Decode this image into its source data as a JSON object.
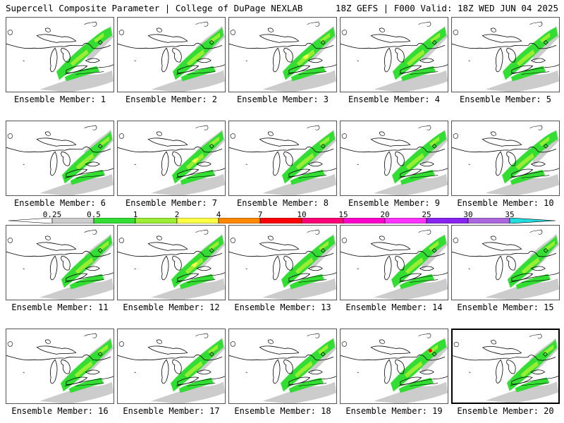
{
  "header": {
    "left": "Supercell Composite Parameter | College of DuPage NEXLAB",
    "right": "18Z GEFS | F000 Valid: 18Z WED JUN 04 2025"
  },
  "caption_prefix": "Ensemble Member:",
  "members": [
    {
      "n": "1"
    },
    {
      "n": "2"
    },
    {
      "n": "3"
    },
    {
      "n": "4"
    },
    {
      "n": "5"
    },
    {
      "n": "6"
    },
    {
      "n": "7"
    },
    {
      "n": "8"
    },
    {
      "n": "9"
    },
    {
      "n": "10"
    },
    {
      "n": "11"
    },
    {
      "n": "12"
    },
    {
      "n": "13"
    },
    {
      "n": "14"
    },
    {
      "n": "15"
    },
    {
      "n": "16"
    },
    {
      "n": "17"
    },
    {
      "n": "18"
    },
    {
      "n": "19"
    },
    {
      "n": "20",
      "selected": true
    }
  ],
  "legend": {
    "levels": [
      "0.25",
      "0.5",
      "1",
      "2",
      "4",
      "7",
      "10",
      "15",
      "20",
      "25",
      "30",
      "35"
    ],
    "colors": [
      "#cccccc",
      "#33dd33",
      "#99ee33",
      "#ffff44",
      "#ff8800",
      "#ff0000",
      "#ff0077",
      "#ff00cc",
      "#ff33ff",
      "#8822ee",
      "#aa66dd",
      "#22dddd"
    ]
  },
  "map_colors": {
    "light": "#cccccc",
    "green": "#33dd33",
    "lime": "#99ee33",
    "yellow": "#ffff44",
    "red": "#ff0000"
  }
}
